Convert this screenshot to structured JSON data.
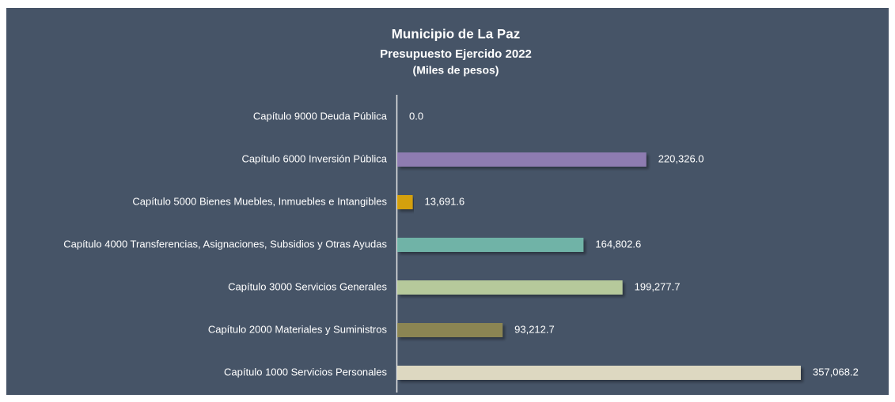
{
  "chart_data": {
    "type": "bar",
    "orientation": "horizontal",
    "title": "Municipio de La Paz",
    "subtitle": "Presupuesto Ejercido 2022",
    "units": "(Miles de pesos)",
    "categories": [
      "Capítulo 9000 Deuda Pública",
      "Capítulo 6000 Inversión Pública",
      "Capítulo 5000 Bienes Muebles, Inmuebles e Intangibles",
      "Capítulo 4000 Transferencias, Asignaciones, Subsidios y Otras Ayudas",
      "Capítulo 3000 Servicios Generales",
      "Capítulo 2000 Materiales y Suministros",
      "Capítulo 1000 Servicios Personales"
    ],
    "values": [
      0,
      220326.0,
      13691.6,
      164802.6,
      199277.7,
      93212.7,
      357068.2
    ],
    "value_labels": [
      "0.0",
      "220,326.0",
      "13,691.6",
      "164,802.6",
      "199,277.7",
      "93,212.7",
      "357,068.2"
    ],
    "colors": [
      null,
      "#8e7cb1",
      "#d4a00f",
      "#70b3a7",
      "#b6c99b",
      "#8b8553",
      "#ddd8c1"
    ]
  }
}
